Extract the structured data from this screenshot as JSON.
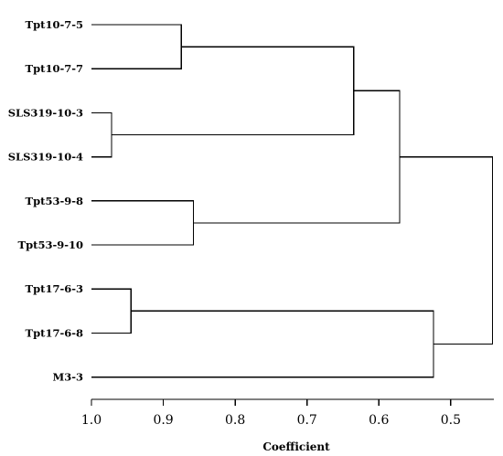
{
  "chart_data": {
    "type": "dendrogram",
    "xlabel": "Coefficient",
    "xlim": [
      1.0,
      0.44
    ],
    "ticks": [
      {
        "value": 1.0,
        "label": "1.0"
      },
      {
        "value": 0.9,
        "label": "0.9"
      },
      {
        "value": 0.8,
        "label": "0.8"
      },
      {
        "value": 0.7,
        "label": "0.7"
      },
      {
        "value": 0.6,
        "label": "0.6"
      },
      {
        "value": 0.5,
        "label": "0.5"
      }
    ],
    "leaves": [
      "Tpt10-7-5",
      "Tpt10-7-7",
      "SLS319-10-3",
      "SLS319-10-4",
      "Tpt53-9-8",
      "Tpt53-9-10",
      "Tpt17-6-3",
      "Tpt17-6-8",
      "M3-3"
    ],
    "merges": [
      {
        "left": 2,
        "right": 3,
        "height": 0.972
      },
      {
        "left": 6,
        "right": 7,
        "height": 0.945
      },
      {
        "left": 0,
        "right": 1,
        "height": 0.875
      },
      {
        "left": 4,
        "right": 5,
        "height": 0.858
      },
      {
        "left": 11,
        "right": 9,
        "height": 0.635
      },
      {
        "left": 13,
        "right": 12,
        "height": 0.571
      },
      {
        "left": 10,
        "right": 8,
        "height": 0.524
      },
      {
        "left": 14,
        "right": 15,
        "height": 0.442
      }
    ]
  }
}
